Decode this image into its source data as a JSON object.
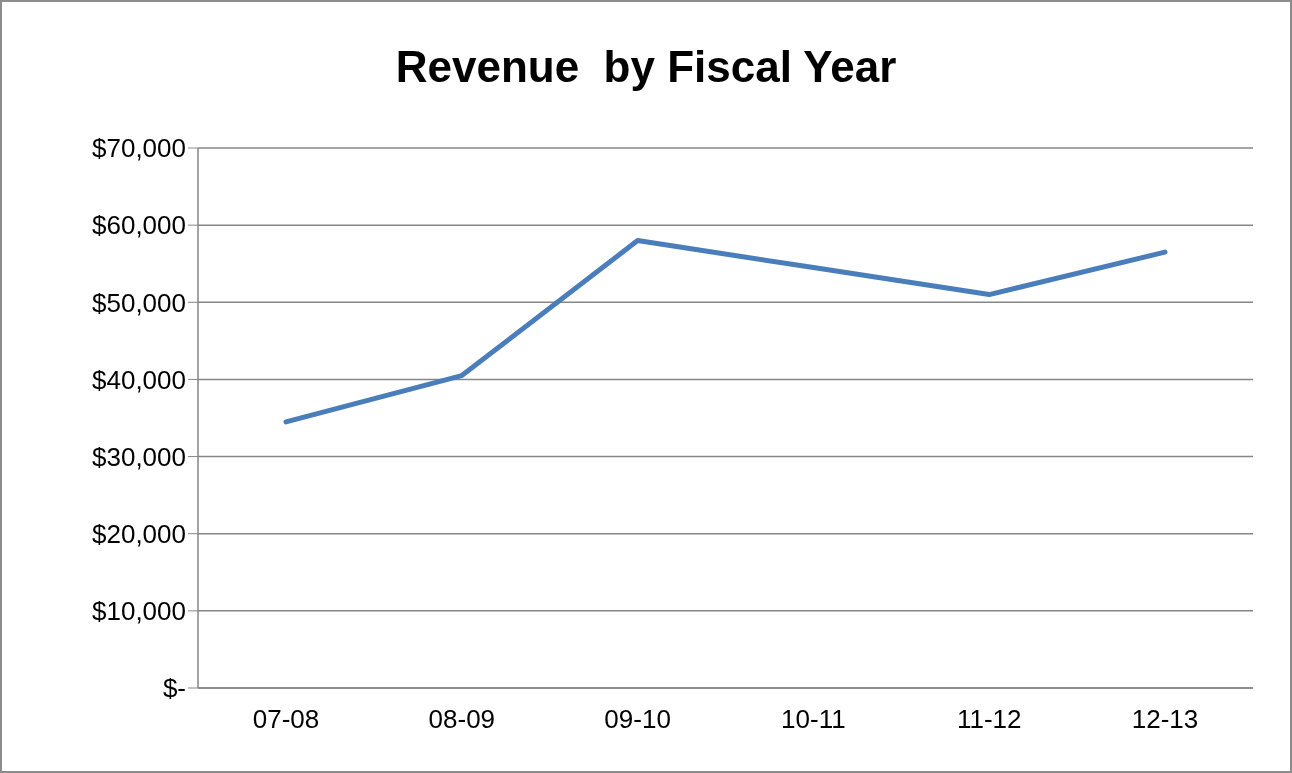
{
  "chart_data": {
    "type": "line",
    "title": "Revenue  by Fiscal Year",
    "categories": [
      "07-08",
      "08-09",
      "09-10",
      "10-11",
      "11-12",
      "12-13"
    ],
    "series": [
      {
        "color": "#4a7ebb",
        "values": [
          34500,
          40500,
          58000,
          54500,
          51000,
          56500
        ]
      }
    ],
    "ylim": [
      0,
      70000
    ],
    "yticks": [
      {
        "value": 0,
        "label": "$-"
      },
      {
        "value": 10000,
        "label": "$10,000"
      },
      {
        "value": 20000,
        "label": "$20,000"
      },
      {
        "value": 30000,
        "label": "$30,000"
      },
      {
        "value": 40000,
        "label": "$40,000"
      },
      {
        "value": 50000,
        "label": "$50,000"
      },
      {
        "value": 60000,
        "label": "$60,000"
      },
      {
        "value": 70000,
        "label": "$70,000"
      }
    ],
    "grid": "y",
    "legend": false,
    "marker": "none",
    "line_style": "solid"
  }
}
